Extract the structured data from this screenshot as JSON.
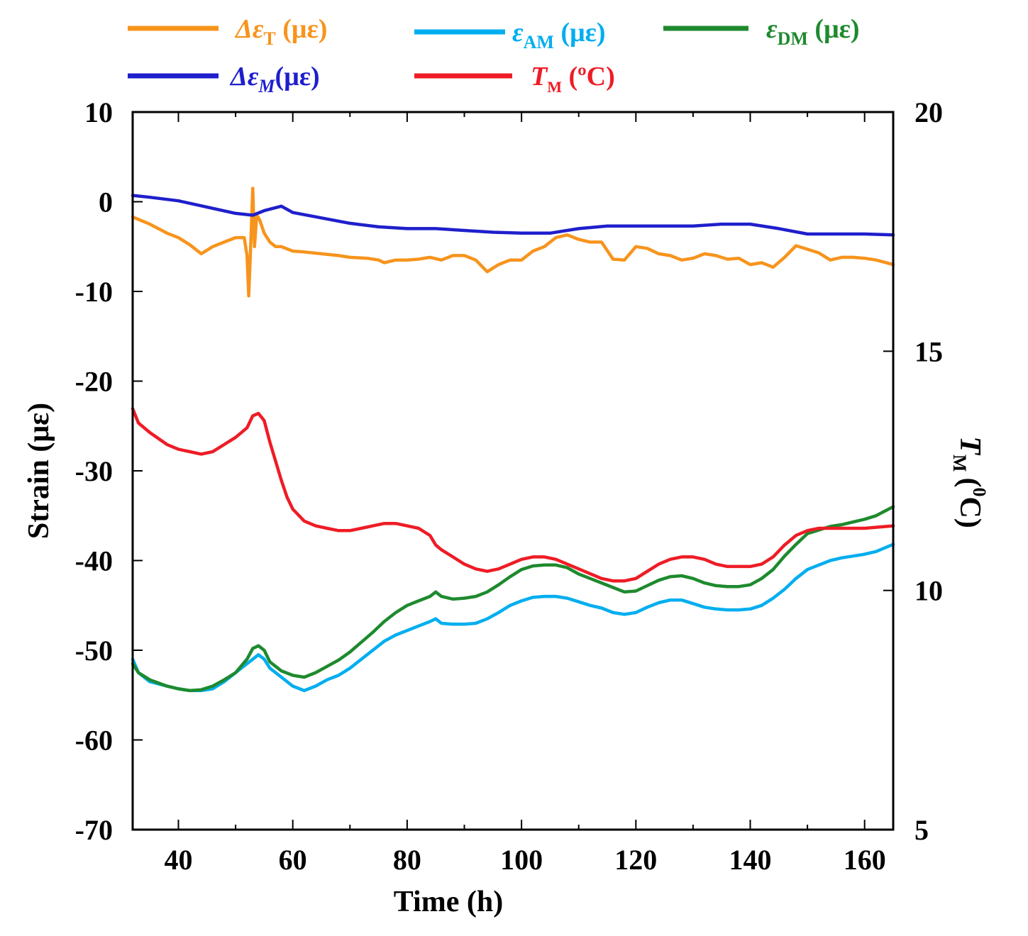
{
  "chart_data": {
    "type": "line",
    "xlabel": "Time (h)",
    "ylabel": "Strain (με)",
    "y2label_main": "T",
    "y2label_sub": "M",
    "y2label_unit_open": "(",
    "y2label_unit_sup": "0",
    "y2label_unit_close": "C)",
    "xlim": [
      32,
      165
    ],
    "ylim": [
      -70,
      10
    ],
    "y2lim": [
      5,
      20
    ],
    "x_ticks": [
      40,
      60,
      80,
      100,
      120,
      140,
      160
    ],
    "x_tick_labels": [
      "40",
      "60",
      "80",
      "100",
      "120",
      "140",
      "160"
    ],
    "y_ticks": [
      10,
      0,
      -10,
      -20,
      -30,
      -40,
      -50,
      -60,
      -70
    ],
    "y_tick_labels": [
      "10",
      "0",
      "-10",
      "-20",
      "-30",
      "-40",
      "-50",
      "-60",
      "-70"
    ],
    "y2_ticks": [
      20,
      15,
      10,
      5
    ],
    "y2_tick_labels": [
      "20",
      "15",
      "10",
      "5"
    ],
    "legend": [
      {
        "key": "dT",
        "prefix": "Δε",
        "sub": "T",
        "unit": " (με)",
        "color": "#f7941d"
      },
      {
        "key": "eAM",
        "prefix": "ε",
        "sub": "AM",
        "unit": " (με)",
        "color": "#00aeef"
      },
      {
        "key": "eDM",
        "prefix": "ε",
        "sub": "DM",
        "unit": " (με)",
        "color": "#1e8a2e"
      },
      {
        "key": "dM",
        "prefix": "Δε",
        "sub": "M",
        "unit": "(με)",
        "color": "#1f1fcc"
      },
      {
        "key": "TM",
        "prefix": "T",
        "sub": "M",
        "unit": " (ºC)",
        "color": "#ee1c25"
      }
    ],
    "series": [
      {
        "name": "ΔεT (με)",
        "axis": "left",
        "color": "#f7941d",
        "x": [
          32,
          35,
          38,
          40,
          42,
          44,
          46,
          48,
          50,
          51.5,
          52,
          52.3,
          52.7,
          53,
          53.3,
          53.7,
          54.2,
          55,
          56,
          57,
          58,
          60,
          62,
          65,
          68,
          70,
          73,
          75,
          76,
          78,
          80,
          82,
          84,
          86,
          88,
          90,
          92,
          94,
          96,
          98,
          100,
          102,
          104,
          106,
          108,
          110,
          112,
          114,
          116,
          118,
          120,
          122,
          124,
          126,
          128,
          130,
          132,
          134,
          136,
          138,
          140,
          142,
          144,
          146,
          148,
          150,
          152,
          154,
          156,
          158,
          160,
          162,
          165
        ],
        "y": [
          -1.7,
          -2.5,
          -3.5,
          -4,
          -4.8,
          -5.8,
          -5,
          -4.5,
          -4,
          -4,
          -6,
          -10.5,
          -4,
          1.5,
          -5,
          -1.5,
          -2,
          -3.5,
          -4.5,
          -5,
          -5,
          -5.5,
          -5.6,
          -5.8,
          -6,
          -6.2,
          -6.3,
          -6.5,
          -6.8,
          -6.5,
          -6.5,
          -6.4,
          -6.2,
          -6.5,
          -6,
          -6,
          -6.5,
          -7.8,
          -7,
          -6.5,
          -6.5,
          -5.5,
          -5,
          -4,
          -3.7,
          -4.2,
          -4.5,
          -4.5,
          -6.4,
          -6.5,
          -5,
          -5.2,
          -5.8,
          -6,
          -6.5,
          -6.3,
          -5.8,
          -6,
          -6.4,
          -6.3,
          -7,
          -6.8,
          -7.3,
          -6.2,
          -4.9,
          -5.3,
          -5.7,
          -6.5,
          -6.2,
          -6.2,
          -6.3,
          -6.5,
          -7
        ]
      },
      {
        "name": "ΔεM (με)",
        "axis": "left",
        "color": "#1f1fcc",
        "x": [
          32,
          35,
          40,
          45,
          50,
          53,
          55,
          58,
          60,
          65,
          70,
          75,
          80,
          85,
          90,
          95,
          100,
          105,
          110,
          115,
          120,
          125,
          130,
          135,
          140,
          145,
          150,
          155,
          160,
          165
        ],
        "y": [
          0.7,
          0.5,
          0.1,
          -0.6,
          -1.3,
          -1.5,
          -1,
          -0.5,
          -1.2,
          -1.8,
          -2.4,
          -2.8,
          -3,
          -3,
          -3.2,
          -3.4,
          -3.5,
          -3.5,
          -3,
          -2.7,
          -2.7,
          -2.7,
          -2.7,
          -2.5,
          -2.5,
          -3,
          -3.6,
          -3.6,
          -3.6,
          -3.7
        ]
      },
      {
        "name": "εAM (με)",
        "axis": "left",
        "color": "#00aeef",
        "x": [
          32,
          33,
          35,
          38,
          40,
          42,
          44,
          46,
          48,
          50,
          52,
          53,
          54,
          55,
          56,
          58,
          60,
          62,
          64,
          66,
          68,
          70,
          72,
          74,
          76,
          78,
          80,
          82,
          84,
          85,
          86,
          88,
          90,
          92,
          94,
          96,
          98,
          100,
          102,
          104,
          106,
          108,
          110,
          112,
          114,
          116,
          118,
          120,
          122,
          124,
          126,
          128,
          130,
          132,
          134,
          136,
          138,
          140,
          142,
          144,
          146,
          148,
          150,
          152,
          154,
          156,
          158,
          160,
          162,
          165
        ],
        "y": [
          -51,
          -52.5,
          -53.5,
          -54,
          -54.3,
          -54.5,
          -54.5,
          -54.3,
          -53.5,
          -52.5,
          -51.5,
          -51,
          -50.5,
          -51,
          -52,
          -53,
          -54,
          -54.5,
          -54,
          -53.3,
          -52.8,
          -52,
          -51,
          -50,
          -49,
          -48.3,
          -47.8,
          -47.3,
          -46.8,
          -46.5,
          -47,
          -47.1,
          -47.1,
          -47,
          -46.5,
          -45.8,
          -45,
          -44.5,
          -44.1,
          -44,
          -44,
          -44.2,
          -44.6,
          -45,
          -45.3,
          -45.8,
          -46,
          -45.8,
          -45.2,
          -44.7,
          -44.4,
          -44.4,
          -44.8,
          -45.2,
          -45.4,
          -45.5,
          -45.5,
          -45.4,
          -45,
          -44.2,
          -43.2,
          -42,
          -41,
          -40.5,
          -40,
          -39.7,
          -39.5,
          -39.3,
          -39,
          -38.2
        ]
      },
      {
        "name": "εDM (με)",
        "axis": "left",
        "color": "#1e8a2e",
        "x": [
          32,
          33,
          35,
          38,
          40,
          42,
          44,
          46,
          48,
          50,
          52,
          53,
          54,
          55,
          56,
          58,
          60,
          62,
          64,
          66,
          68,
          70,
          72,
          74,
          76,
          78,
          80,
          82,
          84,
          85,
          86,
          88,
          90,
          92,
          94,
          96,
          98,
          100,
          102,
          104,
          106,
          108,
          110,
          112,
          114,
          116,
          118,
          120,
          122,
          124,
          126,
          128,
          130,
          132,
          134,
          136,
          138,
          140,
          142,
          144,
          146,
          148,
          150,
          152,
          154,
          156,
          158,
          160,
          162,
          165
        ],
        "y": [
          -51.5,
          -52.5,
          -53.3,
          -54,
          -54.3,
          -54.5,
          -54.4,
          -54,
          -53.3,
          -52.5,
          -51,
          -49.8,
          -49.5,
          -50,
          -51.3,
          -52.3,
          -52.8,
          -53,
          -52.5,
          -51.8,
          -51.1,
          -50.2,
          -49.1,
          -48,
          -46.8,
          -45.8,
          -45,
          -44.5,
          -44,
          -43.5,
          -44,
          -44.3,
          -44.2,
          -44,
          -43.5,
          -42.7,
          -41.8,
          -41,
          -40.6,
          -40.5,
          -40.5,
          -40.8,
          -41.5,
          -42,
          -42.5,
          -43,
          -43.5,
          -43.4,
          -42.8,
          -42.2,
          -41.8,
          -41.7,
          -42,
          -42.5,
          -42.8,
          -42.9,
          -42.9,
          -42.7,
          -42,
          -41,
          -39.5,
          -38.2,
          -37,
          -36.6,
          -36.2,
          -36,
          -35.7,
          -35.4,
          -35,
          -34
        ]
      },
      {
        "name": "TM (ºC)",
        "axis": "right",
        "color": "#ee1c25",
        "x": [
          32,
          33,
          35,
          38,
          40,
          42,
          44,
          46,
          48,
          50,
          52,
          53,
          54,
          55,
          56,
          57,
          58,
          59,
          60,
          62,
          64,
          66,
          68,
          70,
          72,
          74,
          76,
          78,
          80,
          82,
          84,
          85,
          86,
          88,
          90,
          92,
          94,
          96,
          98,
          100,
          102,
          104,
          106,
          108,
          110,
          112,
          114,
          116,
          118,
          120,
          122,
          124,
          126,
          128,
          130,
          132,
          134,
          136,
          138,
          140,
          142,
          144,
          146,
          148,
          150,
          152,
          154,
          156,
          158,
          160,
          162,
          165
        ],
        "y": [
          13.8,
          13.5,
          13.3,
          13.05,
          12.95,
          12.9,
          12.85,
          12.9,
          13.05,
          13.2,
          13.4,
          13.65,
          13.7,
          13.55,
          13.1,
          12.7,
          12.3,
          11.95,
          11.7,
          11.45,
          11.35,
          11.3,
          11.25,
          11.25,
          11.3,
          11.35,
          11.4,
          11.4,
          11.35,
          11.3,
          11.15,
          10.95,
          10.85,
          10.7,
          10.55,
          10.45,
          10.4,
          10.45,
          10.55,
          10.65,
          10.7,
          10.7,
          10.65,
          10.55,
          10.45,
          10.35,
          10.25,
          10.2,
          10.2,
          10.25,
          10.4,
          10.55,
          10.65,
          10.7,
          10.7,
          10.65,
          10.55,
          10.5,
          10.5,
          10.5,
          10.55,
          10.7,
          10.95,
          11.15,
          11.25,
          11.3,
          11.3,
          11.3,
          11.3,
          11.3,
          11.32,
          11.35
        ]
      }
    ]
  }
}
